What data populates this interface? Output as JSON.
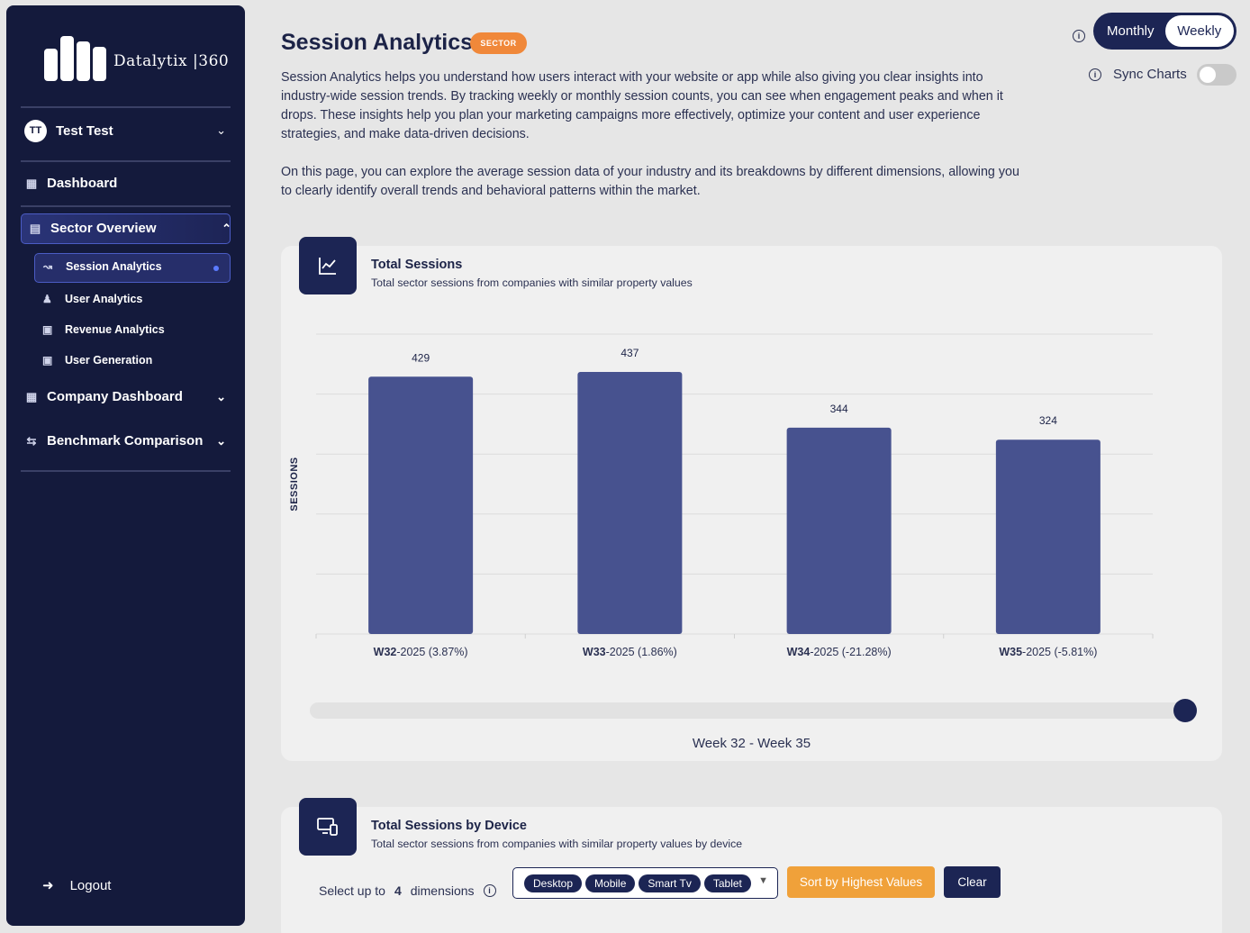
{
  "sidebar": {
    "logo_text": "Datalytix |360",
    "user": {
      "initials": "TT",
      "name": "Test Test"
    },
    "items": [
      {
        "label": "Dashboard"
      },
      {
        "label": "Sector Overview"
      },
      {
        "label": "Company Dashboard"
      },
      {
        "label": "Benchmark Comparison"
      }
    ],
    "sub_items": [
      {
        "label": "Session Analytics"
      },
      {
        "label": "User Analytics"
      },
      {
        "label": "Revenue Analytics"
      },
      {
        "label": "User Generation"
      }
    ],
    "logout_label": "Logout"
  },
  "header": {
    "title": "Session Analytics",
    "badge": "SECTOR",
    "desc_1": "Session Analytics helps you understand how users interact with your website or app while also giving you clear insights into industry-wide session trends. By tracking weekly or monthly session counts, you can see when engagement peaks and when it drops. These insights help you plan your marketing campaigns more effectively, optimize your content and user experience strategies, and make data-driven decisions.",
    "desc_2": "On this page, you can explore the average session data of your industry and its breakdowns by different dimensions, allowing you to clearly identify overall trends and behavioral patterns within the market.",
    "period_toggle": {
      "options": [
        "Monthly",
        "Weekly"
      ],
      "selected": "Weekly"
    },
    "sync_label": "Sync Charts"
  },
  "total_sessions": {
    "title": "Total Sessions",
    "subtitle": "Total sector sessions from companies with similar property values",
    "range_label": "Week 32 - Week 35"
  },
  "chart_data": {
    "type": "bar",
    "categories": [
      "W32",
      "W33",
      "W34",
      "W35"
    ],
    "category_suffixes": [
      "-2025 (3.87%)",
      "-2025 (1.86%)",
      "-2025 (-21.28%)",
      "-2025 (-5.81%)"
    ],
    "values": [
      429,
      437,
      344,
      324
    ],
    "ylabel": "SESSIONS",
    "ylim": [
      0,
      500
    ],
    "grid": true,
    "bar_color": "#47528f"
  },
  "by_device": {
    "title": "Total Sessions by Device",
    "subtitle": "Total sector sessions from companies with similar property values by device",
    "select_prefix": "Select up to",
    "select_count": "4",
    "select_suffix": "dimensions",
    "chips": [
      "Desktop",
      "Mobile",
      "Smart Tv",
      "Tablet"
    ],
    "sort_label": "Sort by Highest Values",
    "clear_label": "Clear"
  }
}
